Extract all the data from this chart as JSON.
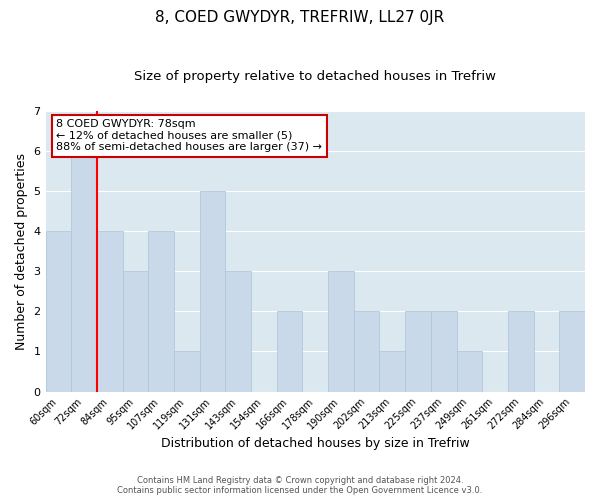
{
  "title": "8, COED GWYDYR, TREFRIW, LL27 0JR",
  "subtitle": "Size of property relative to detached houses in Trefriw",
  "xlabel": "Distribution of detached houses by size in Trefriw",
  "ylabel": "Number of detached properties",
  "bins": [
    "60sqm",
    "72sqm",
    "84sqm",
    "95sqm",
    "107sqm",
    "119sqm",
    "131sqm",
    "143sqm",
    "154sqm",
    "166sqm",
    "178sqm",
    "190sqm",
    "202sqm",
    "213sqm",
    "225sqm",
    "237sqm",
    "249sqm",
    "261sqm",
    "272sqm",
    "284sqm",
    "296sqm"
  ],
  "values": [
    4,
    6,
    4,
    3,
    4,
    1,
    5,
    3,
    0,
    2,
    0,
    3,
    2,
    1,
    2,
    2,
    1,
    0,
    2,
    0,
    2
  ],
  "bar_color": "#c9d9ea",
  "bar_edge_color": "#b0c8dc",
  "annotation_line1": "8 COED GWYDYR: 78sqm",
  "annotation_line2": "← 12% of detached houses are smaller (5)",
  "annotation_line3": "88% of semi-detached houses are larger (37) →",
  "ylim": [
    0,
    7
  ],
  "yticks": [
    0,
    1,
    2,
    3,
    4,
    5,
    6,
    7
  ],
  "footnote1": "Contains HM Land Registry data © Crown copyright and database right 2024.",
  "footnote2": "Contains public sector information licensed under the Open Government Licence v3.0.",
  "background_color": "#ffffff",
  "plot_background": "#dce8f0",
  "grid_color": "#ffffff",
  "title_fontsize": 11,
  "subtitle_fontsize": 9.5,
  "annotation_box_color": "#ffffff",
  "annotation_box_edge": "#cc0000",
  "red_line_x": 1.5
}
